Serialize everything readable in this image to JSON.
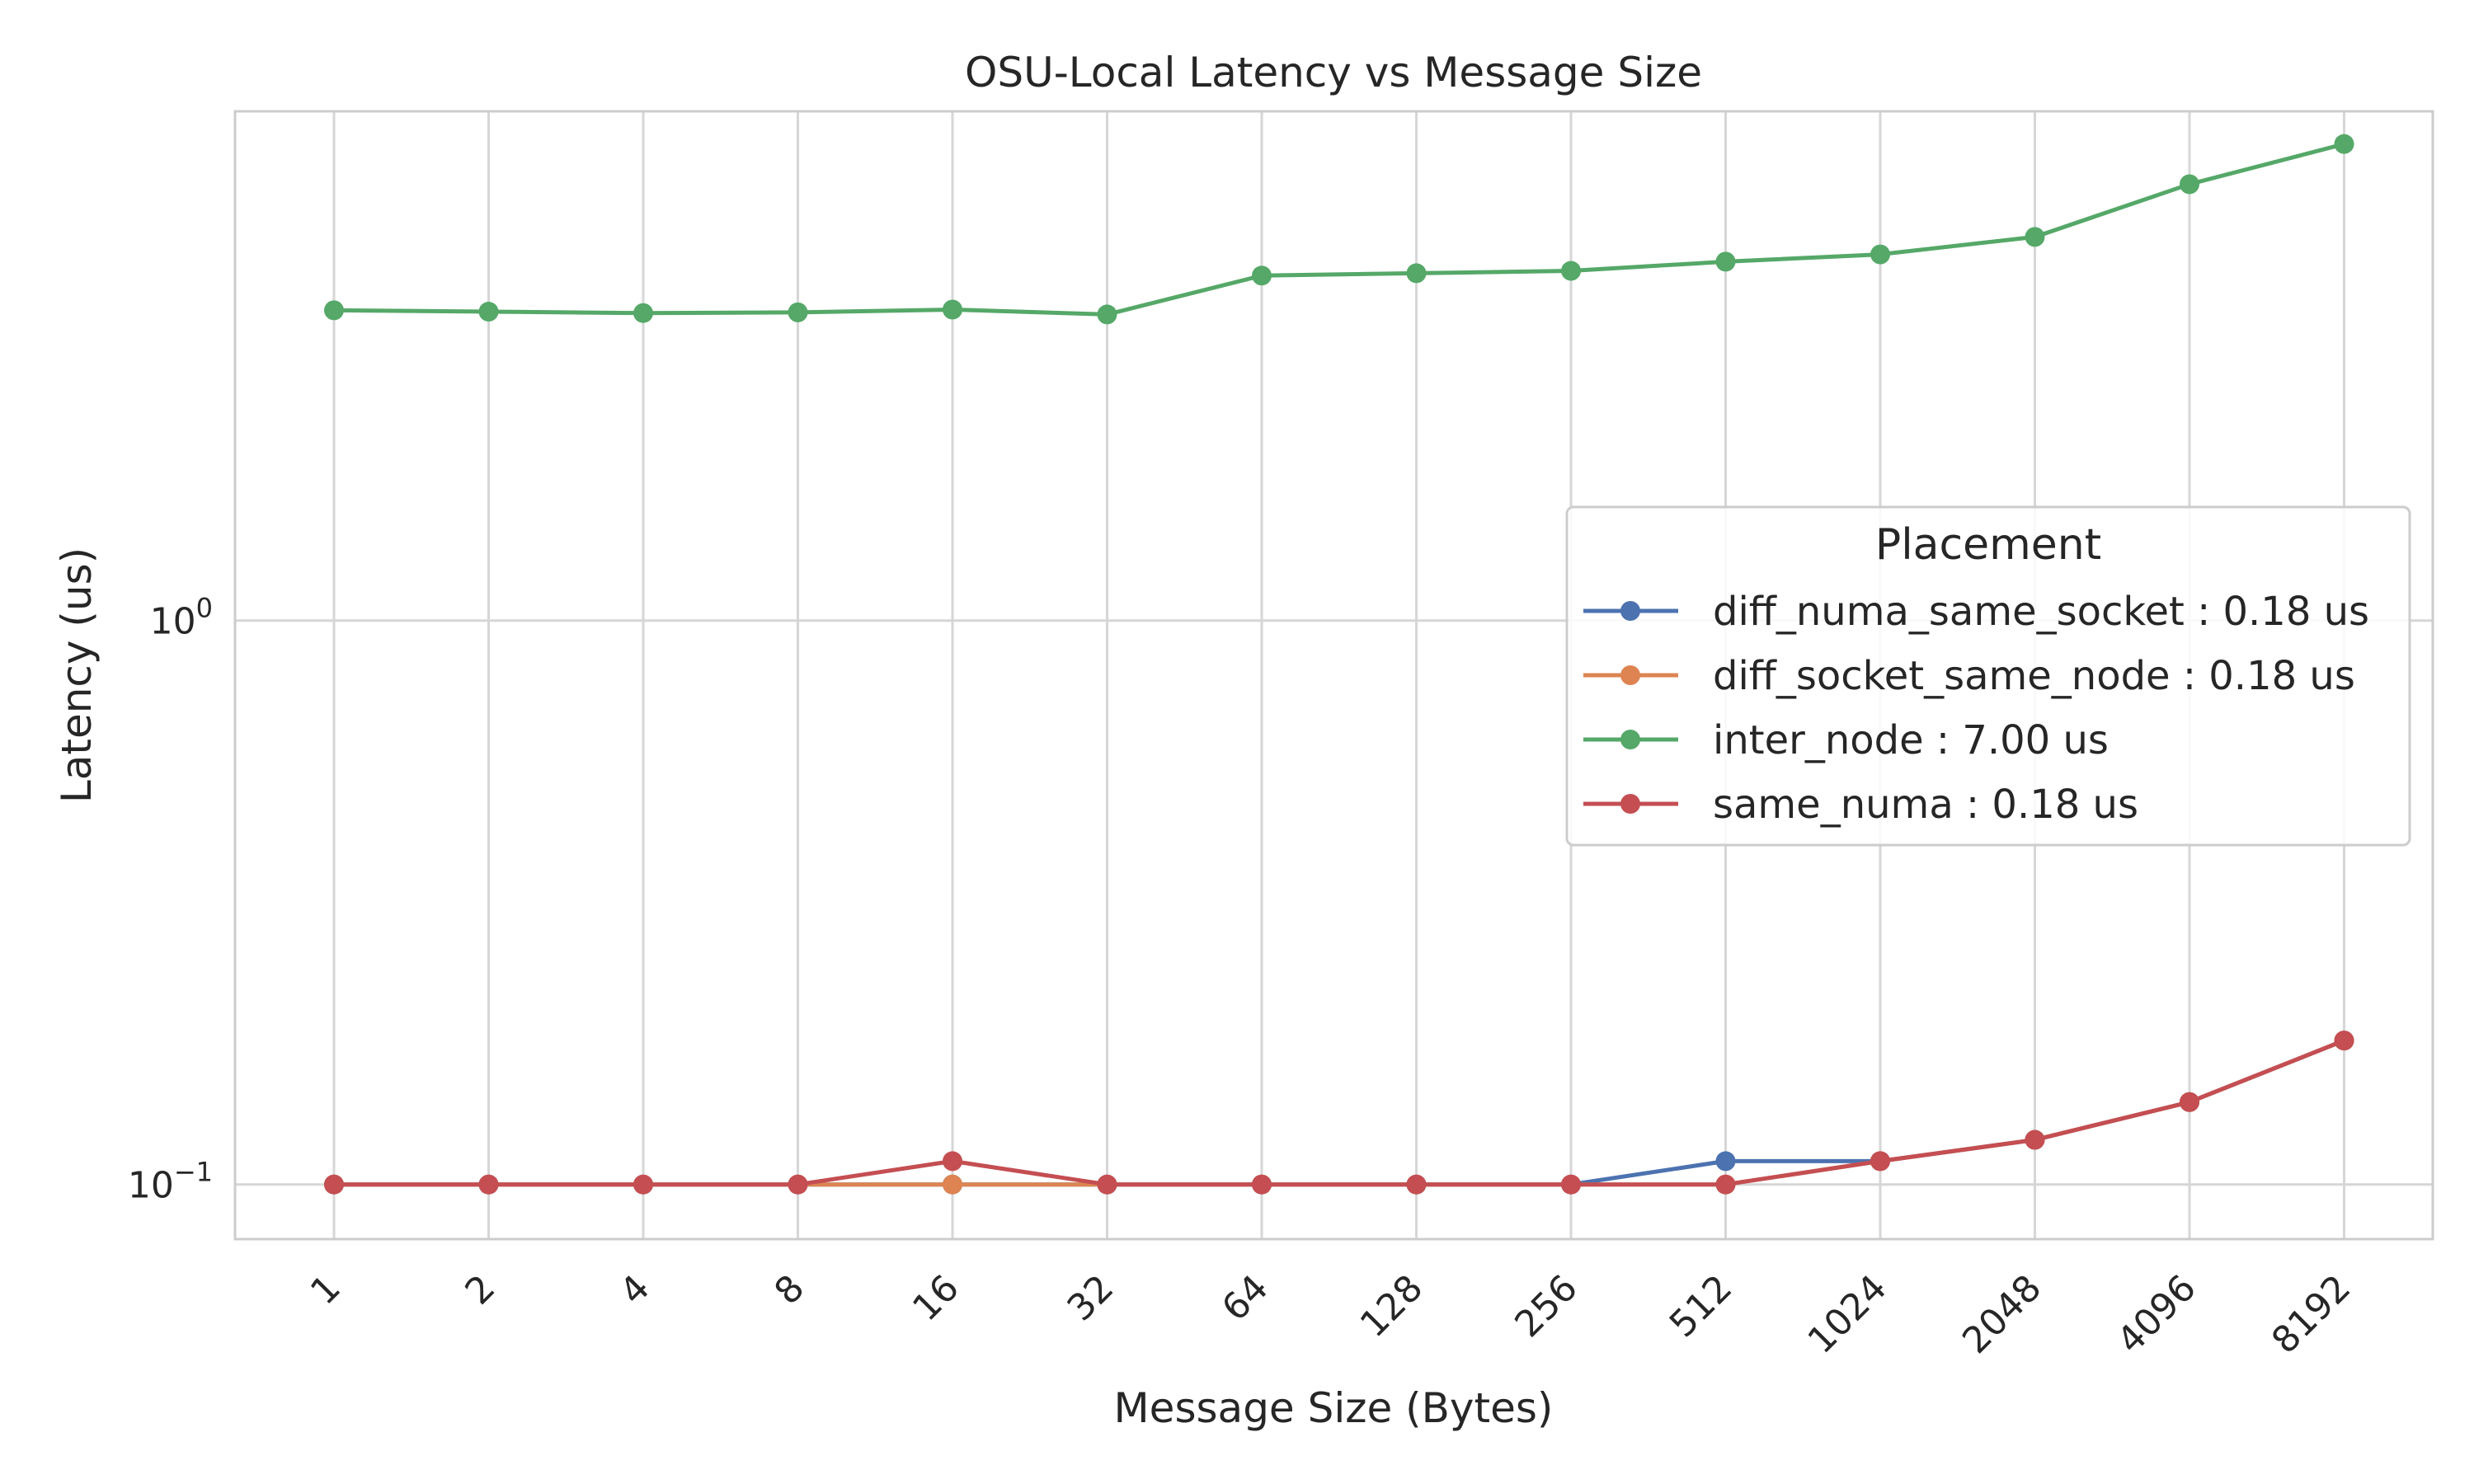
{
  "chart_data": {
    "type": "line",
    "title": "OSU-Local Latency vs Message Size",
    "xlabel": "Message Size (Bytes)",
    "ylabel": "Latency (us)",
    "x_scale": "categorical",
    "y_scale": "log",
    "ylim": [
      0.08,
      8.0
    ],
    "y_ticks": [
      {
        "value": 1,
        "label_base": "10",
        "label_exp": "0"
      },
      {
        "value": 0.1,
        "label_base": "10",
        "label_exp": "−1"
      }
    ],
    "categories": [
      "1",
      "2",
      "4",
      "8",
      "16",
      "32",
      "64",
      "128",
      "256",
      "512",
      "1024",
      "2048",
      "4096",
      "8192"
    ],
    "grid": true,
    "legend": {
      "title": "Placement",
      "placement": "center-right"
    },
    "series": [
      {
        "name": "diff_numa_same_socket : 0.18 us",
        "color": "#4c72b0",
        "values": [
          0.1,
          0.1,
          0.1,
          0.1,
          0.1,
          0.1,
          0.1,
          0.1,
          0.1,
          0.11,
          0.11,
          0.12,
          0.14,
          0.18
        ]
      },
      {
        "name": "diff_socket_same_node : 0.18 us",
        "color": "#dd8452",
        "values": [
          0.1,
          0.1,
          0.1,
          0.1,
          0.1,
          0.1,
          0.1,
          0.1,
          0.1,
          0.1,
          0.11,
          0.12,
          0.14,
          0.18
        ]
      },
      {
        "name": "inter_node : 7.00 us",
        "color": "#55a868",
        "values": [
          3.55,
          3.53,
          3.51,
          3.52,
          3.56,
          3.49,
          4.09,
          4.13,
          4.17,
          4.33,
          4.46,
          4.79,
          5.94,
          7.0
        ]
      },
      {
        "name": "same_numa : 0.18 us",
        "color": "#c44e52",
        "values": [
          0.1,
          0.1,
          0.1,
          0.1,
          0.11,
          0.1,
          0.1,
          0.1,
          0.1,
          0.1,
          0.11,
          0.12,
          0.14,
          0.18
        ]
      }
    ]
  }
}
